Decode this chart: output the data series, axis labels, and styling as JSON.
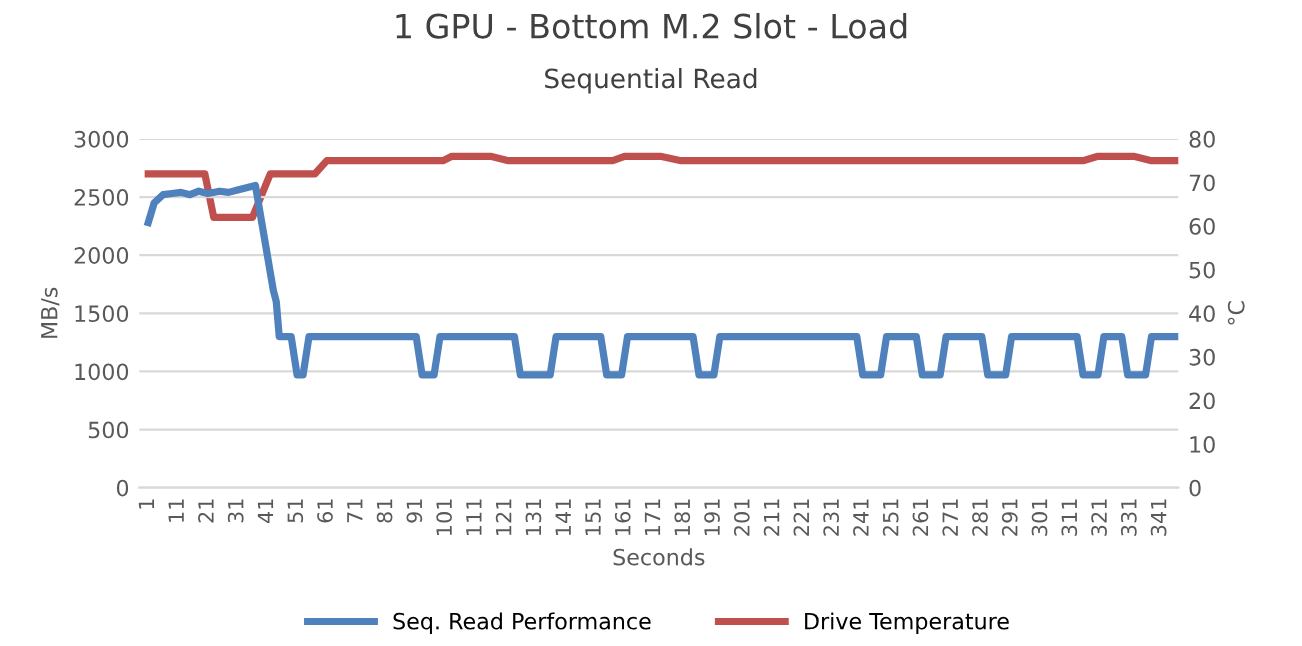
{
  "chart_data": {
    "type": "line",
    "title": "1 GPU - Bottom M.2 Slot - Load",
    "subtitle": "Sequential Read",
    "xlabel": "Seconds",
    "ylabel": "MB/s",
    "y2label": "°C",
    "xlim": [
      -2,
      347
    ],
    "xticks": [
      1,
      11,
      21,
      31,
      41,
      51,
      61,
      71,
      81,
      91,
      101,
      111,
      121,
      131,
      141,
      151,
      161,
      171,
      181,
      191,
      201,
      211,
      221,
      231,
      241,
      251,
      261,
      271,
      281,
      291,
      301,
      311,
      321,
      331,
      341
    ],
    "ylim": [
      0,
      3000
    ],
    "yticks": [
      0,
      500,
      1000,
      1500,
      2000,
      2500,
      3000
    ],
    "y2lim": [
      0,
      80
    ],
    "y2ticks": [
      0,
      10,
      20,
      30,
      40,
      50,
      60,
      70,
      80
    ],
    "grid": "y",
    "legend": "bottom",
    "marker": "none",
    "line_style": "solid",
    "series": [
      {
        "name": "Seq. Read Performance",
        "color": "#4f81bd",
        "x": [
          1,
          3,
          6,
          9,
          12,
          15,
          18,
          21,
          25,
          28,
          31,
          34,
          37,
          39,
          41,
          43,
          44,
          45,
          49,
          51,
          53,
          55,
          91,
          93,
          97,
          99,
          124,
          126,
          136,
          138,
          153,
          155,
          160,
          162,
          184,
          186,
          191,
          193,
          239,
          241,
          247,
          249,
          259,
          261,
          267,
          269,
          281,
          283,
          289,
          291,
          313,
          315,
          320,
          322,
          328,
          330,
          336,
          338,
          346
        ],
        "values": [
          2280,
          2450,
          2520,
          2530,
          2540,
          2520,
          2550,
          2530,
          2550,
          2540,
          2560,
          2580,
          2600,
          2300,
          2000,
          1700,
          1600,
          1300,
          1300,
          970,
          970,
          1300,
          1300,
          970,
          970,
          1300,
          1300,
          970,
          970,
          1300,
          1300,
          970,
          970,
          1300,
          1300,
          970,
          970,
          1300,
          1300,
          970,
          970,
          1300,
          1300,
          970,
          970,
          1300,
          1300,
          970,
          970,
          1300,
          1300,
          970,
          970,
          1300,
          1300,
          970,
          970,
          1300,
          1300
        ]
      },
      {
        "name": "Drive Temperature",
        "color": "#c0504d",
        "axis": "y2",
        "x": [
          1,
          20,
          23,
          36,
          42,
          57,
          61,
          100,
          103,
          116,
          122,
          157,
          161,
          173,
          180,
          315,
          320,
          332,
          338,
          346
        ],
        "values": [
          72,
          72,
          62,
          62,
          72,
          72,
          75,
          75,
          76,
          76,
          75,
          75,
          76,
          76,
          75,
          75,
          76,
          76,
          75,
          75
        ]
      }
    ]
  }
}
